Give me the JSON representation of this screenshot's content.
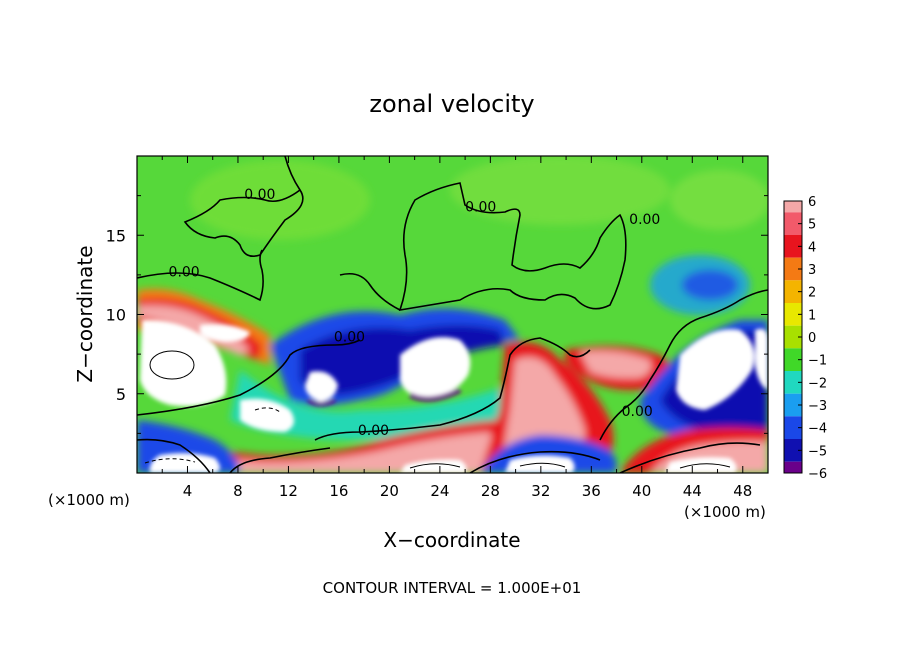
{
  "chart_data": {
    "type": "heatmap",
    "title": "zonal velocity",
    "xlabel": "X−coordinate",
    "ylabel": "Z−coordinate",
    "x_unit_label": "(×1000 m)",
    "x_unit_label_right": "(×1000 m)",
    "footer": "CONTOUR INTERVAL = 1.000E+01",
    "xlim": [
      0,
      50
    ],
    "ylim": [
      0,
      20
    ],
    "x_ticks": [
      "4",
      "8",
      "12",
      "16",
      "20",
      "24",
      "28",
      "32",
      "36",
      "40",
      "44",
      "48"
    ],
    "y_ticks": [
      "5",
      "10",
      "15"
    ],
    "colorbar": {
      "ticks": [
        "6",
        "5",
        "4",
        "3",
        "2",
        "1",
        "0",
        "−1",
        "−2",
        "−3",
        "−4",
        "−5",
        "−6"
      ],
      "colors": [
        "#f4a8a8",
        "#f25a6a",
        "#e8141e",
        "#f47a14",
        "#f4b400",
        "#e8e800",
        "#a8e000",
        "#40d828",
        "#20d8c0",
        "#1a9ef0",
        "#1a48e8",
        "#1010b0",
        "#6a008a"
      ],
      "min": -6,
      "max": 6
    },
    "contour_labels": [
      {
        "text": "0.00",
        "x": 8.5,
        "y": 17.3
      },
      {
        "text": "0.00",
        "x": 26.0,
        "y": 16.5
      },
      {
        "text": "0.00",
        "x": 39.0,
        "y": 15.7
      },
      {
        "text": "0.00",
        "x": 2.5,
        "y": 12.4
      },
      {
        "text": "0.00",
        "x": 15.6,
        "y": 8.3
      },
      {
        "text": "0.00",
        "x": 17.5,
        "y": 2.4
      },
      {
        "text": "0.00",
        "x": 38.4,
        "y": 3.6
      }
    ]
  }
}
